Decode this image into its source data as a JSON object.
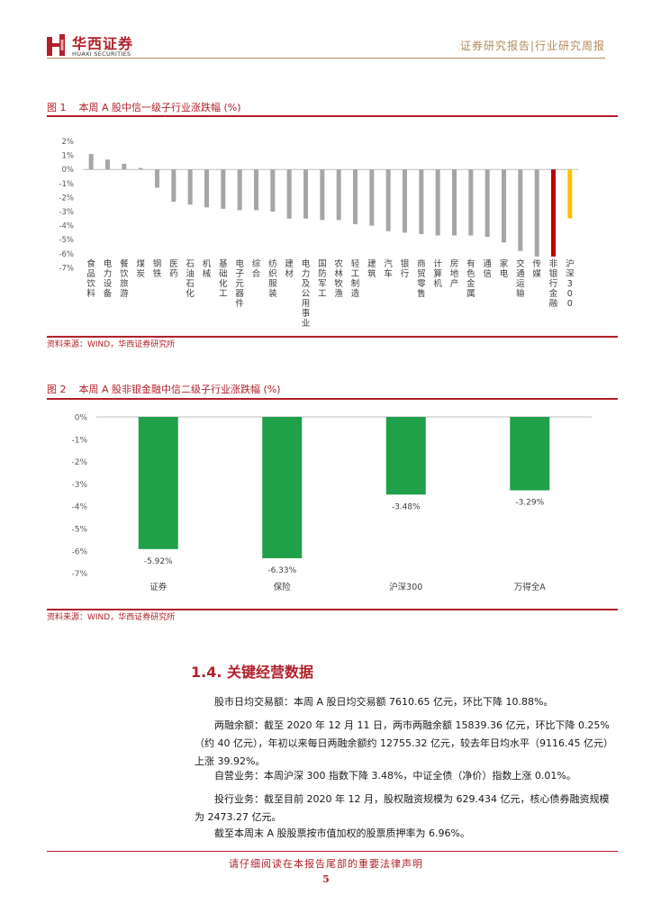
{
  "header": {
    "logo_cn": "华西证券",
    "logo_en": "HUAXI SECURITIES",
    "report_type": "证券研究报告|行业研究周报"
  },
  "colors": {
    "brand_red": "#b2202a",
    "header_gold": "#b58a5a",
    "bar_grey": "#a6a6a6",
    "highlight_red": "#c00000",
    "highlight_gold": "#ffc000",
    "bar_green": "#21a04a"
  },
  "figure1": {
    "label": "图 1",
    "title": "本周 A 股中信一级子行业涨跌幅 (%)",
    "source": "资料来源：WIND，华西证券研究所"
  },
  "figure2": {
    "label": "图 2",
    "title": "本周 A 股非银金融中信二级子行业涨跌幅 (%)",
    "source": "资料来源：WIND，华西证券研究所"
  },
  "chart_data": [
    {
      "type": "bar",
      "categories": [
        "食品饮料",
        "电力设备",
        "餐饮旅游",
        "煤炭",
        "钢铁",
        "医药",
        "石油石化",
        "机械",
        "基础化工",
        "电子元器件",
        "综合",
        "纺织服装",
        "建材",
        "电力及公用事业",
        "国防军工",
        "农林牧渔",
        "轻工制造",
        "建筑",
        "汽车",
        "银行",
        "商贸零售",
        "计算机",
        "房地产",
        "有色金属",
        "通信",
        "家电",
        "交通运输",
        "传媒",
        "非银行金融",
        "沪深300"
      ],
      "values": [
        1.1,
        0.7,
        0.4,
        0.1,
        -1.3,
        -2.3,
        -2.5,
        -2.7,
        -2.8,
        -2.9,
        -2.9,
        -3.0,
        -3.5,
        -3.5,
        -3.6,
        -3.6,
        -3.9,
        -4.0,
        -4.4,
        -4.5,
        -4.6,
        -4.7,
        -4.7,
        -4.7,
        -4.8,
        -5.2,
        -5.8,
        -6.2,
        -6.2,
        -3.48
      ],
      "highlight": {
        "非银行金融": "#c00000",
        "沪深300": "#ffc000"
      },
      "ylim": [
        -7,
        2
      ],
      "yticks": [
        "2%",
        "1%",
        "0%",
        "-1%",
        "-2%",
        "-3%",
        "-4%",
        "-5%",
        "-6%",
        "-7%"
      ],
      "grid": false,
      "legend": "none"
    },
    {
      "type": "bar",
      "categories": [
        "证券",
        "保险",
        "沪深300",
        "万得全A"
      ],
      "values": [
        -5.92,
        -6.33,
        -3.48,
        -3.29
      ],
      "data_labels": [
        "-5.92%",
        "-6.33%",
        "-3.48%",
        "-3.29%"
      ],
      "ylim": [
        -7,
        0
      ],
      "yticks": [
        "0%",
        "-1%",
        "-2%",
        "-3%",
        "-4%",
        "-5%",
        "-6%",
        "-7%"
      ],
      "grid": false,
      "legend": "none"
    }
  ],
  "section": {
    "heading": "1.4. 关键经营数据",
    "paragraphs": [
      "股市日均交易额：本周 A 股日均交易额 7610.65 亿元，环比下降 10.88%。",
      "两融余额：截至 2020 年 12 月 11 日，两市两融余额 15839.36 亿元，环比下降 0.25%（约 40 亿元），年初以来每日两融余额约 12755.32 亿元，较去年日均水平（9116.45 亿元）上涨 39.92%。",
      "自营业务：本周沪深 300 指数下降 3.48%，中证全债（净价）指数上涨 0.01%。",
      "投行业务：截至目前 2020 年 12 月，股权融资规模为 629.434 亿元，核心债券融资规模为 2473.27 亿元。",
      "截至本周末 A 股股票按市值加权的股票质押率为 6.96%。"
    ]
  },
  "footer": {
    "note": "请仔细阅读在本报告尾部的重要法律声明",
    "page": "5"
  }
}
